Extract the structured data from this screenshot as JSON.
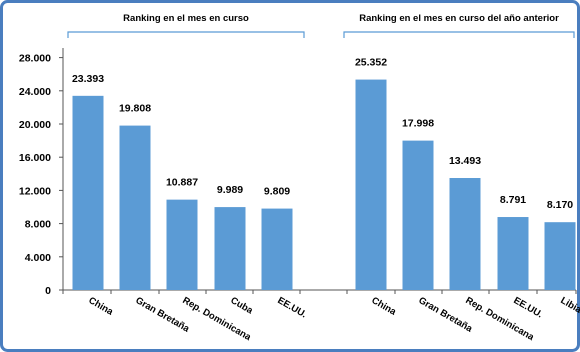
{
  "chart_data": {
    "type": "bar",
    "title": "",
    "xlabel": "",
    "ylabel": "",
    "ylim": [
      0,
      28000
    ],
    "yticks": [
      0,
      4000,
      8000,
      12000,
      16000,
      20000,
      24000,
      28000
    ],
    "ytick_labels": [
      "0",
      "4.000",
      "8.000",
      "12.000",
      "16.000",
      "20.000",
      "24.000",
      "28.000"
    ],
    "grid": false,
    "bar_color": "#5b9bd5",
    "frame_color": "#4a7ebf",
    "bracket_color": "#5b9bd5",
    "groups": [
      {
        "label": "Ranking en el mes en curso",
        "categories": [
          "China",
          "Gran Bretaña",
          "Rep. Dominicana",
          "Cuba",
          "EE.UU."
        ],
        "values": [
          23393,
          19808,
          10887,
          9989,
          9809
        ],
        "value_labels": [
          "23.393",
          "19.808",
          "10.887",
          "9.989",
          "9.809"
        ]
      },
      {
        "label": "Ranking en el mes en curso del año anterior",
        "categories": [
          "China",
          "Gran Bretaña",
          "Rep. Dominicana",
          "EE.UU.",
          "Libia"
        ],
        "values": [
          25352,
          17998,
          13493,
          8791,
          8170
        ],
        "value_labels": [
          "25.352",
          "17.998",
          "13.493",
          "8.791",
          "8.170"
        ]
      }
    ]
  }
}
